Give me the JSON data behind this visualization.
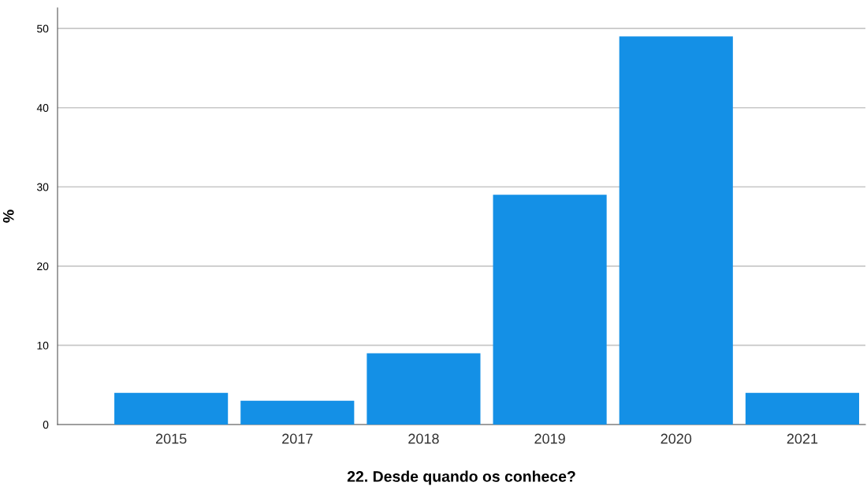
{
  "chart_data": {
    "type": "bar",
    "xlabel": "22. Desde quando os conhece?",
    "ylabel": "%",
    "categories": [
      "2015",
      "2017",
      "2018",
      "2019",
      "2020",
      "2021"
    ],
    "values": [
      4,
      3,
      9,
      29,
      49,
      4
    ],
    "color": "#1490e6",
    "ylim": [
      0,
      52.6
    ],
    "yticks": [
      0,
      10,
      20,
      30,
      40,
      50
    ],
    "grid": "y"
  }
}
